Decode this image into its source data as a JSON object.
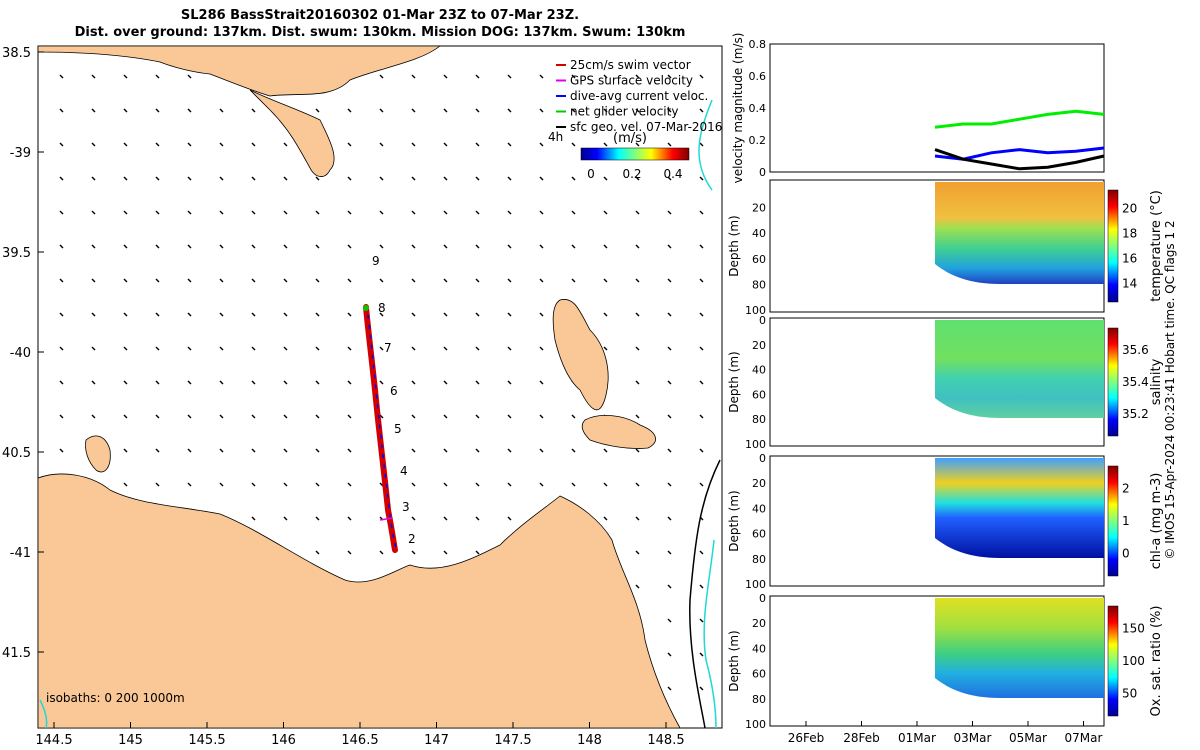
{
  "title_line1": "SL286 BassStrait20160302 01-Mar 23Z to 07-Mar 23Z.",
  "title_line2": "Dist. over ground: 137km. Dist. swum: 130km. Mission DOG: 137km. Swum: 130km",
  "stamp": "© IMOS 15-Apr-2024 00:23:41 Hobart time. QC flags 1  2",
  "map": {
    "lon_ticks": [
      "144.5",
      "145",
      "145.5",
      "146",
      "146.5",
      "147",
      "147.5",
      "148",
      "148.5"
    ],
    "lat_ticks": [
      "38.5",
      "-39",
      "39.5",
      "-40",
      "40.5",
      "-41",
      "41.5"
    ],
    "legend": [
      "25cm/s swim vector",
      "GPS surface velocity",
      "dive-avg current veloc.",
      "net glider velocity",
      "sfc geo. vel. 07-Mar-2016"
    ],
    "legend_colors": [
      "#d40000",
      "#e600e6",
      "#0000ff",
      "#00cc00",
      "#000000"
    ],
    "colorbar_prefix": "4h",
    "colorbar_unit": "(m/s)",
    "colorbar_ticks": [
      "0",
      "0.2",
      "0.4"
    ],
    "isobaths": "isobaths: 0   200  1000m",
    "day_labels": [
      "2",
      "3",
      "4",
      "5",
      "6",
      "7",
      "8",
      "9"
    ],
    "land_color": "#f9c896"
  },
  "chart_data": [
    {
      "type": "line",
      "ylabel": "velocity magnitude (m/s)",
      "ylim": [
        0,
        0.8
      ],
      "yticks": [
        "0",
        "0.2",
        "0.4",
        "0.6",
        "0.8"
      ],
      "x": [
        "2-Mar",
        "3-Mar",
        "4-Mar",
        "5-Mar",
        "6-Mar",
        "7-Mar",
        "8-Mar"
      ],
      "series": [
        {
          "color": "#00ee00",
          "values": [
            0.28,
            0.3,
            0.3,
            0.33,
            0.36,
            0.38,
            0.36
          ]
        },
        {
          "color": "#0000ff",
          "values": [
            0.1,
            0.08,
            0.12,
            0.14,
            0.12,
            0.13,
            0.15
          ]
        },
        {
          "color": "#000000",
          "values": [
            0.14,
            0.08,
            0.05,
            0.02,
            0.03,
            0.06,
            0.1
          ]
        }
      ]
    },
    {
      "type": "heatmap",
      "ylabel": "Depth (m)",
      "cblabel": "temperature (°C)",
      "cbticks": [
        "14",
        "16",
        "18",
        "20"
      ],
      "cbscale": "cool",
      "yticks": [
        "20",
        "40",
        "60",
        "80",
        "100"
      ]
    },
    {
      "type": "heatmap",
      "ylabel": "Depth (m)",
      "cblabel": "salinity",
      "cbticks": [
        "35.2",
        "35.4",
        "35.6"
      ],
      "cbscale": "cool",
      "yticks": [
        "0",
        "20",
        "40",
        "60",
        "80",
        "100"
      ]
    },
    {
      "type": "heatmap",
      "ylabel": "Depth (m)",
      "cblabel": "chl-a (mg m-3)",
      "cbticks": [
        "0",
        "1",
        "2"
      ],
      "cbscale": "cool",
      "yticks": [
        "0",
        "20",
        "40",
        "60",
        "80",
        "100"
      ]
    },
    {
      "type": "heatmap",
      "ylabel": "Depth (m)",
      "cblabel": "Ox. sat. ratio (%)",
      "cbticks": [
        "50",
        "100",
        "150"
      ],
      "cbscale": "cool",
      "yticks": [
        "0",
        "20",
        "40",
        "60",
        "80",
        "100"
      ]
    }
  ],
  "time_axis": [
    "26Feb",
    "28Feb",
    "01Mar",
    "03Mar",
    "05Mar",
    "07Mar"
  ]
}
